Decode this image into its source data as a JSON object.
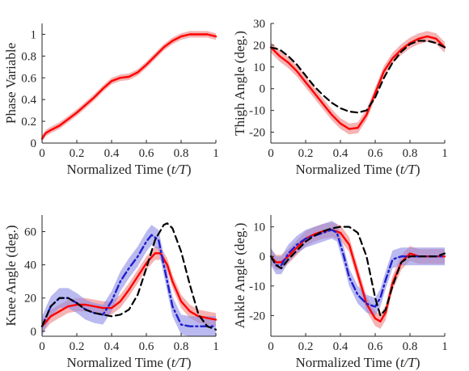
{
  "colors": {
    "measured": "#ff0000",
    "measured_band": "#f29999",
    "predicted": "#1f1fcc",
    "predicted_band": "#8c8ce6",
    "reference": "#000000",
    "axis": "#262626"
  },
  "chart_data": [
    {
      "type": "line",
      "xlabel_prefix": "Normalized Time (",
      "xlabel_var": "t/T",
      "xlabel_suffix": ")",
      "ylabel": "Phase Variable",
      "xlim": [
        0,
        1
      ],
      "ylim": [
        0,
        1.1
      ],
      "xticks": [
        0,
        0.2,
        0.4,
        0.6,
        0.8,
        1
      ],
      "xtick_labels": [
        "0",
        "0.2",
        "0.4",
        "0.6",
        "0.8",
        "1"
      ],
      "yticks": [
        0,
        0.2,
        0.4,
        0.6,
        0.8,
        1
      ],
      "ytick_labels": [
        "0",
        "0.2",
        "0.4",
        "0.6",
        "0.8",
        "1"
      ],
      "series": [
        {
          "style": "measured",
          "band": 0.03,
          "x": [
            0,
            0.02,
            0.05,
            0.1,
            0.15,
            0.2,
            0.25,
            0.3,
            0.35,
            0.4,
            0.45,
            0.5,
            0.55,
            0.6,
            0.65,
            0.7,
            0.75,
            0.8,
            0.85,
            0.9,
            0.95,
            1.0
          ],
          "y": [
            0.04,
            0.09,
            0.12,
            0.16,
            0.22,
            0.28,
            0.35,
            0.42,
            0.5,
            0.57,
            0.6,
            0.61,
            0.65,
            0.72,
            0.8,
            0.88,
            0.94,
            0.98,
            1.0,
            1.0,
            1.0,
            0.98
          ]
        }
      ]
    },
    {
      "type": "line",
      "xlabel_prefix": "Normalized Time (",
      "xlabel_var": "t/T",
      "xlabel_suffix": ")",
      "ylabel": "Thigh Angle (deg.)",
      "xlim": [
        0,
        1
      ],
      "ylim": [
        -25,
        30
      ],
      "xticks": [
        0,
        0.2,
        0.4,
        0.6,
        0.8,
        1
      ],
      "xtick_labels": [
        "0",
        "0.2",
        "0.4",
        "0.6",
        "0.8",
        "1"
      ],
      "yticks": [
        -20,
        -10,
        0,
        10,
        20,
        30
      ],
      "ytick_labels": [
        "-20",
        "-10",
        "0",
        "10",
        "20",
        "30"
      ],
      "series": [
        {
          "style": "measured",
          "band": 2.5,
          "x": [
            0,
            0.05,
            0.1,
            0.15,
            0.2,
            0.25,
            0.3,
            0.35,
            0.4,
            0.45,
            0.5,
            0.55,
            0.6,
            0.65,
            0.7,
            0.75,
            0.8,
            0.85,
            0.9,
            0.95,
            1.0
          ],
          "y": [
            19,
            15,
            12,
            8,
            3,
            -2,
            -7,
            -12,
            -16,
            -18.5,
            -18,
            -12,
            -2,
            8,
            14,
            18,
            21,
            23,
            24,
            23,
            19
          ]
        },
        {
          "style": "reference",
          "x": [
            0,
            0.05,
            0.1,
            0.15,
            0.2,
            0.25,
            0.3,
            0.35,
            0.4,
            0.45,
            0.5,
            0.55,
            0.6,
            0.65,
            0.7,
            0.75,
            0.8,
            0.85,
            0.9,
            0.95,
            1.0
          ],
          "y": [
            19,
            18,
            15,
            11,
            6,
            1,
            -3,
            -6.5,
            -9,
            -10.5,
            -11,
            -10,
            -4,
            5,
            12,
            17,
            20.5,
            22,
            22,
            21,
            19
          ]
        }
      ]
    },
    {
      "type": "line",
      "xlabel_prefix": "Normalized Time (",
      "xlabel_var": "t/T",
      "xlabel_suffix": ")",
      "ylabel": "Knee Angle (deg.)",
      "xlim": [
        0,
        1
      ],
      "ylim": [
        -3,
        70
      ],
      "xticks": [
        0,
        0.2,
        0.4,
        0.6,
        0.8,
        1
      ],
      "xtick_labels": [
        "0",
        "0.2",
        "0.4",
        "0.6",
        "0.8",
        "1"
      ],
      "yticks": [
        0,
        20,
        40,
        60
      ],
      "ytick_labels": [
        "0",
        "20",
        "40",
        "60"
      ],
      "series": [
        {
          "style": "measured",
          "band": 4,
          "x": [
            0,
            0.05,
            0.1,
            0.15,
            0.2,
            0.25,
            0.3,
            0.35,
            0.4,
            0.45,
            0.5,
            0.55,
            0.6,
            0.65,
            0.68,
            0.72,
            0.75,
            0.8,
            0.85,
            0.9,
            0.95,
            1.0
          ],
          "y": [
            3,
            9,
            12,
            15,
            16,
            16,
            15,
            14,
            14,
            18,
            25,
            33,
            41,
            47,
            47,
            40,
            30,
            18,
            12,
            9,
            8,
            7
          ]
        },
        {
          "style": "predicted",
          "band": 6,
          "x": [
            0,
            0.05,
            0.1,
            0.15,
            0.2,
            0.25,
            0.3,
            0.35,
            0.4,
            0.45,
            0.5,
            0.55,
            0.6,
            0.63,
            0.67,
            0.7,
            0.75,
            0.8,
            0.85,
            0.9,
            0.95,
            1.0
          ],
          "y": [
            3,
            15,
            20,
            20,
            17,
            13,
            11,
            10,
            18,
            30,
            38,
            45,
            54,
            58,
            55,
            40,
            15,
            4,
            3,
            3,
            3,
            3
          ]
        },
        {
          "style": "reference",
          "x": [
            0,
            0.05,
            0.1,
            0.15,
            0.2,
            0.25,
            0.3,
            0.35,
            0.4,
            0.45,
            0.5,
            0.55,
            0.6,
            0.65,
            0.7,
            0.72,
            0.75,
            0.8,
            0.85,
            0.9,
            0.95,
            1.0
          ],
          "y": [
            3,
            15,
            20,
            20,
            17,
            13,
            11,
            10,
            9,
            10,
            13,
            22,
            38,
            55,
            64,
            65,
            62,
            48,
            28,
            10,
            3,
            1
          ]
        }
      ]
    },
    {
      "type": "line",
      "xlabel_prefix": "Normalized Time (",
      "xlabel_var": "t/T",
      "xlabel_suffix": ")",
      "ylabel": "Ankle Angle (deg.)",
      "xlim": [
        0,
        1
      ],
      "ylim": [
        -27,
        14
      ],
      "xticks": [
        0,
        0.2,
        0.4,
        0.6,
        0.8,
        1
      ],
      "xtick_labels": [
        "0",
        "0.2",
        "0.4",
        "0.6",
        "0.8",
        "1"
      ],
      "yticks": [
        -20,
        -10,
        0,
        10
      ],
      "ytick_labels": [
        "-20",
        "-10",
        "0",
        "10"
      ],
      "series": [
        {
          "style": "measured",
          "band": 2.5,
          "x": [
            0,
            0.03,
            0.06,
            0.1,
            0.15,
            0.2,
            0.25,
            0.3,
            0.35,
            0.4,
            0.45,
            0.5,
            0.55,
            0.6,
            0.63,
            0.66,
            0.7,
            0.75,
            0.8,
            0.85,
            0.9,
            0.95,
            1.0
          ],
          "y": [
            0,
            -2,
            -2,
            0,
            3,
            6,
            7.5,
            8.5,
            9,
            8,
            4,
            -6,
            -16,
            -21,
            -22,
            -19,
            -9,
            -2,
            1,
            0,
            0,
            0,
            0
          ]
        },
        {
          "style": "predicted",
          "band": 3,
          "x": [
            0,
            0.03,
            0.06,
            0.1,
            0.15,
            0.2,
            0.25,
            0.3,
            0.35,
            0.38,
            0.42,
            0.45,
            0.5,
            0.55,
            0.6,
            0.63,
            0.66,
            0.7,
            0.75,
            0.8,
            0.85,
            0.9,
            0.95,
            1.0
          ],
          "y": [
            0,
            -3,
            -3,
            1,
            4,
            6,
            7,
            8,
            9,
            8,
            0,
            -7,
            -13,
            -16,
            -17,
            -14,
            -8,
            -1,
            0,
            0,
            0,
            0,
            0,
            0
          ]
        },
        {
          "style": "reference",
          "x": [
            0,
            0.03,
            0.06,
            0.1,
            0.15,
            0.2,
            0.25,
            0.3,
            0.35,
            0.4,
            0.45,
            0.5,
            0.55,
            0.6,
            0.63,
            0.66,
            0.7,
            0.75,
            0.8,
            0.85,
            0.9,
            0.95,
            1.0
          ],
          "y": [
            0,
            -3,
            -4,
            -1,
            2,
            5,
            7,
            8.5,
            9.5,
            10,
            10,
            8,
            0,
            -14,
            -20,
            -18,
            -10,
            -2,
            0,
            0,
            0,
            0,
            1
          ]
        }
      ]
    }
  ]
}
